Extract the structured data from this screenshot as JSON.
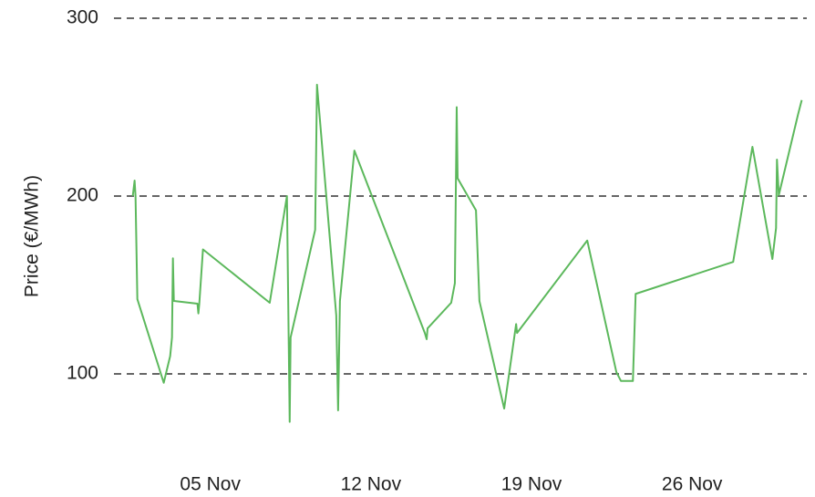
{
  "chart_data": {
    "type": "line",
    "y_label": "Price (€/MWh)",
    "x": [
      1.62,
      1.7,
      1.74,
      1.82,
      2.97,
      3.25,
      3.33,
      3.37,
      3.41,
      4.44,
      4.48,
      4.52,
      4.68,
      7.59,
      8.34,
      8.46,
      8.5,
      9.57,
      9.65,
      10.49,
      10.57,
      10.65,
      11.28,
      14.35,
      14.43,
      14.47,
      15.5,
      15.66,
      15.74,
      15.78,
      16.58,
      16.73,
      17.81,
      18.33,
      18.37,
      21.43,
      22.7,
      22.9,
      23.42,
      23.54,
      27.79,
      28.63,
      29.5,
      29.66,
      29.7,
      29.78,
      30.62,
      30.78
    ],
    "values": [
      200,
      208.7,
      200,
      142,
      95,
      110,
      120.5,
      165,
      141,
      139.5,
      134,
      139.5,
      170,
      140,
      200,
      73,
      120.5,
      181,
      262.6,
      133,
      79.5,
      141,
      225.6,
      123,
      119.5,
      125.6,
      140,
      151,
      250,
      210,
      192,
      141,
      80.5,
      128,
      123,
      175,
      101,
      96,
      96,
      145,
      163,
      227.7,
      164.6,
      182,
      220.5,
      200.5,
      246,
      254
    ],
    "color": "#5cb85c",
    "xlim": [
      0.8,
      31.0
    ],
    "xticks": [
      {
        "value": 5,
        "label": "05 Nov"
      },
      {
        "value": 12,
        "label": "12 Nov"
      },
      {
        "value": 19,
        "label": "19 Nov"
      },
      {
        "value": 26,
        "label": "26 Nov"
      }
    ],
    "ylim": [
      55,
      300
    ],
    "yticks": [
      100,
      200,
      300
    ],
    "grid": true
  }
}
